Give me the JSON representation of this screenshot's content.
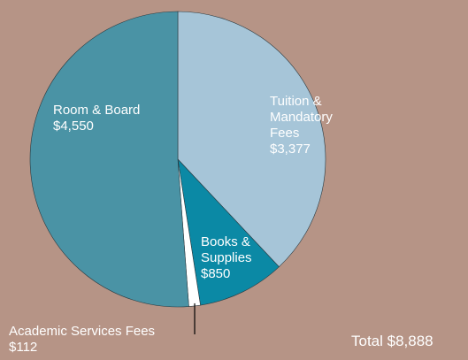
{
  "chart_data": {
    "type": "pie",
    "categories": [
      "Tuition & Mandatory Fees",
      "Books & Supplies",
      "Academic Services Fees",
      "Room & Board"
    ],
    "values": [
      3377,
      850,
      112,
      4550
    ],
    "value_labels": [
      "$3,377",
      "$850",
      "$112",
      "$4,550"
    ],
    "colors": [
      "#a6c5d8",
      "#0b89a5",
      "#ffffff",
      "#4a93a5"
    ],
    "annotation": "Total $8,888"
  }
}
